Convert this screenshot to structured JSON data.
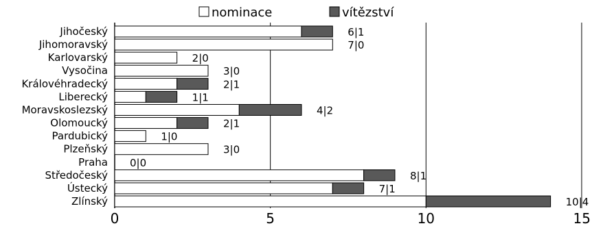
{
  "chart_data": {
    "type": "bar",
    "orientation": "horizontal",
    "stacked": true,
    "categories": [
      "Jihočeský",
      "Jihomoravský",
      "Karlovarský",
      "Vysočina",
      "Královéhradecký",
      "Liberecký",
      "Moravskoslezský",
      "Olomoucký",
      "Pardubický",
      "Plzeňský",
      "Praha",
      "Středočeský",
      "Ústecký",
      "Zlínský"
    ],
    "series": [
      {
        "name": "nominace",
        "color": "#ffffff",
        "values": [
          6,
          7,
          2,
          3,
          2,
          1,
          4,
          2,
          1,
          3,
          0,
          8,
          7,
          10
        ]
      },
      {
        "name": "vítězství",
        "color": "#595959",
        "values": [
          1,
          0,
          0,
          0,
          1,
          1,
          2,
          1,
          0,
          0,
          0,
          1,
          1,
          4
        ]
      }
    ],
    "data_labels": [
      "6|1",
      "7|0",
      "2|0",
      "3|0",
      "2|1",
      "1|1",
      "4|2",
      "2|1",
      "1|0",
      "3|0",
      "0|0",
      "8|1",
      "7|1",
      "10|4"
    ],
    "xlim": [
      0,
      15
    ],
    "xticks": [
      "0",
      "5",
      "10",
      "15"
    ],
    "grid": true,
    "legend_position": "top"
  }
}
